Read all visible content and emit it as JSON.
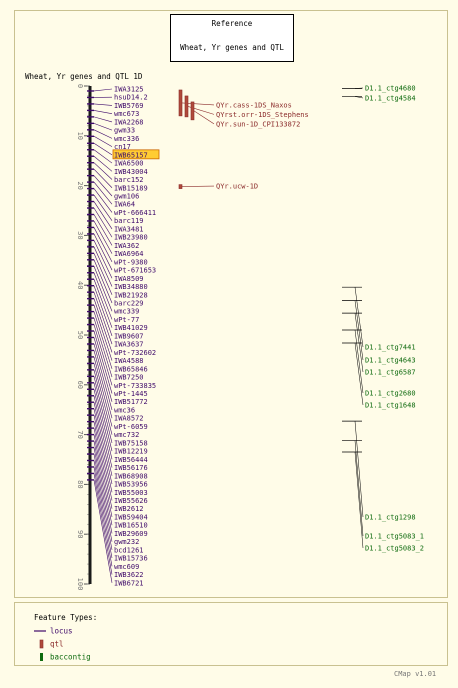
{
  "reference": {
    "title": "Reference",
    "subtitle": "Wheat, Yr genes and QTL"
  },
  "map": {
    "title": "Wheat, Yr genes and QTL 1D",
    "ticks": [
      "0",
      "10",
      "20",
      "30",
      "40",
      "50",
      "60",
      "70",
      "80",
      "90",
      "100"
    ],
    "markers": [
      {
        "label": "IWA3125",
        "pos": 1.0
      },
      {
        "label": "hsuD14.2",
        "pos": 2.3
      },
      {
        "label": "IWB5769",
        "pos": 3.6
      },
      {
        "label": "wmc673",
        "pos": 4.9
      },
      {
        "label": "IWA2268",
        "pos": 6.2
      },
      {
        "label": "gwm33",
        "pos": 7.5
      },
      {
        "label": "wmc336",
        "pos": 8.8
      },
      {
        "label": "cn17",
        "pos": 10.1
      },
      {
        "label": "IWB65157",
        "pos": 11.5
      },
      {
        "label": "IWA6500",
        "pos": 12.8
      },
      {
        "label": "IWB43004",
        "pos": 14.1
      },
      {
        "label": "barc152",
        "pos": 15.4
      },
      {
        "label": "IWB15189",
        "pos": 16.7
      },
      {
        "label": "gwm106",
        "pos": 18.0
      },
      {
        "label": "IWA64",
        "pos": 19.3
      },
      {
        "label": "wPt-666411",
        "pos": 20.6
      },
      {
        "label": "barc119",
        "pos": 21.9
      },
      {
        "label": "IWA3481",
        "pos": 23.2
      },
      {
        "label": "IWB23980",
        "pos": 24.5
      },
      {
        "label": "IWA362",
        "pos": 25.8
      },
      {
        "label": "IWA6964",
        "pos": 27.1
      },
      {
        "label": "wPt-9380",
        "pos": 28.4
      },
      {
        "label": "wPt-671653",
        "pos": 29.7
      },
      {
        "label": "IWA8509",
        "pos": 31.0
      },
      {
        "label": "IWB34880",
        "pos": 32.3
      },
      {
        "label": "IWB21928",
        "pos": 33.6
      },
      {
        "label": "barc229",
        "pos": 34.9
      },
      {
        "label": "wmc339",
        "pos": 36.2
      },
      {
        "label": "wPt-77",
        "pos": 37.5
      },
      {
        "label": "IWB41029",
        "pos": 38.8
      },
      {
        "label": "IWB9607",
        "pos": 40.1
      },
      {
        "label": "IWA3637",
        "pos": 41.4
      },
      {
        "label": "wPt-732602",
        "pos": 42.7
      },
      {
        "label": "IWA4588",
        "pos": 44.0
      },
      {
        "label": "IWB65846",
        "pos": 45.3
      },
      {
        "label": "IWB7250",
        "pos": 46.6
      },
      {
        "label": "wPt-733835",
        "pos": 47.9
      },
      {
        "label": "wPt-1445",
        "pos": 49.2
      },
      {
        "label": "IWB51772",
        "pos": 50.5
      },
      {
        "label": "wmc36",
        "pos": 51.8
      },
      {
        "label": "IWA8572",
        "pos": 53.1
      },
      {
        "label": "wPt-6059",
        "pos": 54.4
      },
      {
        "label": "wmc732",
        "pos": 55.7
      },
      {
        "label": "IWB75158",
        "pos": 57.0
      },
      {
        "label": "IWB12219",
        "pos": 58.3
      },
      {
        "label": "IWB56444",
        "pos": 59.6
      },
      {
        "label": "IWB56176",
        "pos": 60.9
      },
      {
        "label": "IWB68908",
        "pos": 62.2
      },
      {
        "label": "IWB53956",
        "pos": 63.5
      },
      {
        "label": "IWB55003",
        "pos": 64.8
      },
      {
        "label": "IWB55626",
        "pos": 66.1
      },
      {
        "label": "IWB2612",
        "pos": 67.4
      },
      {
        "label": "IWB59404",
        "pos": 68.7
      },
      {
        "label": "IWB16510",
        "pos": 70.0
      },
      {
        "label": "IWB29609",
        "pos": 71.3
      },
      {
        "label": "gwm232",
        "pos": 72.6
      },
      {
        "label": "bcd1261",
        "pos": 73.9
      },
      {
        "label": "IWB15736",
        "pos": 75.2
      },
      {
        "label": "wmc609",
        "pos": 76.5
      },
      {
        "label": "IWB3622",
        "pos": 77.8
      },
      {
        "label": "IWB6721",
        "pos": 79.1
      }
    ],
    "highlighted_marker": "IWB65157",
    "qtls": [
      {
        "label": "QYr.cass-1DS_Naxos",
        "start": 0.8,
        "end": 6.0,
        "label_pos": 3.8
      },
      {
        "label": "QYrst.orr-1DS_Stephens",
        "start": 2.0,
        "end": 6.2,
        "label_pos": 5.7
      },
      {
        "label": "QYr.sun-1D_CPI133872",
        "start": 3.2,
        "end": 6.8,
        "label_pos": 7.6
      },
      {
        "label": "QYr.ucw-1D",
        "start": 19.8,
        "end": 20.6,
        "label_pos": 20.1
      }
    ],
    "baccontigs": [
      {
        "label": "D1.1_ctg4680",
        "pos": 0.5
      },
      {
        "label": "D1.1_ctg4584",
        "pos": 2.1
      },
      {
        "label": "D1.1_ctg7441",
        "pos": 40.4
      },
      {
        "label": "D1.1_ctg4643",
        "pos": 43.1
      },
      {
        "label": "D1.1_ctg6587",
        "pos": 45.6
      },
      {
        "label": "D1.1_ctg2680",
        "pos": 49.0
      },
      {
        "label": "D1.1_ctg1648",
        "pos": 51.6
      },
      {
        "label": "D1.1_ctg1298",
        "pos": 67.3
      },
      {
        "label": "D1.1_ctg5083_1",
        "pos": 71.2
      },
      {
        "label": "D1.1_ctg5083_2",
        "pos": 73.5
      }
    ]
  },
  "legend": {
    "title": "Feature Types:",
    "items": [
      {
        "label": "locus",
        "type": "locus"
      },
      {
        "label": "qtl",
        "type": "qtl"
      },
      {
        "label": "baccontig",
        "type": "baccontig"
      }
    ]
  },
  "footer": "CMap v1.01",
  "colors": {
    "background": "#fffce8",
    "frame": "#c9c190",
    "chromosome": "#1a1a1a",
    "locus": "#3f0a6a",
    "qtl": "#8b2b2b",
    "qtl_fill": "#b04a3a",
    "baccontig": "#0f6b0f",
    "highlight": "#ffcc33",
    "highlight_border": "#cc6600"
  }
}
